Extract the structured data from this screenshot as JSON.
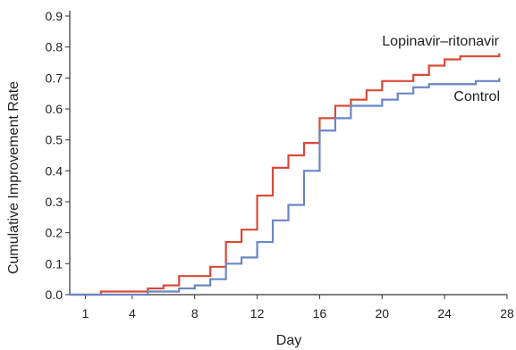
{
  "chart_data": {
    "type": "line",
    "step": true,
    "xlabel": "Day",
    "ylabel": "Cumulative Improvement Rate",
    "xlim": [
      0,
      28
    ],
    "ylim": [
      0,
      0.9
    ],
    "x_ticks": [
      1,
      4,
      8,
      12,
      16,
      20,
      24,
      28
    ],
    "y_ticks": [
      0.0,
      0.1,
      0.2,
      0.3,
      0.4,
      0.5,
      0.6,
      0.7,
      0.8,
      0.9
    ],
    "y_tick_labels": [
      "0.0",
      "0.1",
      "0.2",
      "0.3",
      "0.4",
      "0.5",
      "0.6",
      "0.7",
      "0.8",
      "0.9"
    ],
    "grid": false,
    "legend": "inline labels at line ends",
    "series": [
      {
        "name": "Lopinavir–ritonavir",
        "color": "#d94a38",
        "points": [
          [
            0,
            0.0
          ],
          [
            2,
            0.01
          ],
          [
            5,
            0.02
          ],
          [
            6,
            0.03
          ],
          [
            7,
            0.06
          ],
          [
            9,
            0.09
          ],
          [
            10,
            0.17
          ],
          [
            11,
            0.21
          ],
          [
            12,
            0.32
          ],
          [
            13,
            0.41
          ],
          [
            14,
            0.45
          ],
          [
            15,
            0.49
          ],
          [
            16,
            0.57
          ],
          [
            17,
            0.61
          ],
          [
            18,
            0.63
          ],
          [
            19,
            0.66
          ],
          [
            20,
            0.69
          ],
          [
            22,
            0.71
          ],
          [
            23,
            0.74
          ],
          [
            24,
            0.76
          ],
          [
            25,
            0.77
          ],
          [
            27.5,
            0.78
          ]
        ]
      },
      {
        "name": "Control",
        "color": "#6a87c4",
        "points": [
          [
            0,
            0.0
          ],
          [
            2,
            0.0
          ],
          [
            5,
            0.01
          ],
          [
            7,
            0.02
          ],
          [
            8,
            0.03
          ],
          [
            9,
            0.05
          ],
          [
            10,
            0.1
          ],
          [
            11,
            0.12
          ],
          [
            12,
            0.17
          ],
          [
            13,
            0.24
          ],
          [
            14,
            0.29
          ],
          [
            15,
            0.4
          ],
          [
            16,
            0.53
          ],
          [
            17,
            0.57
          ],
          [
            18,
            0.61
          ],
          [
            20,
            0.63
          ],
          [
            21,
            0.65
          ],
          [
            22,
            0.67
          ],
          [
            23,
            0.68
          ],
          [
            26,
            0.69
          ],
          [
            27.5,
            0.7
          ]
        ]
      }
    ]
  }
}
